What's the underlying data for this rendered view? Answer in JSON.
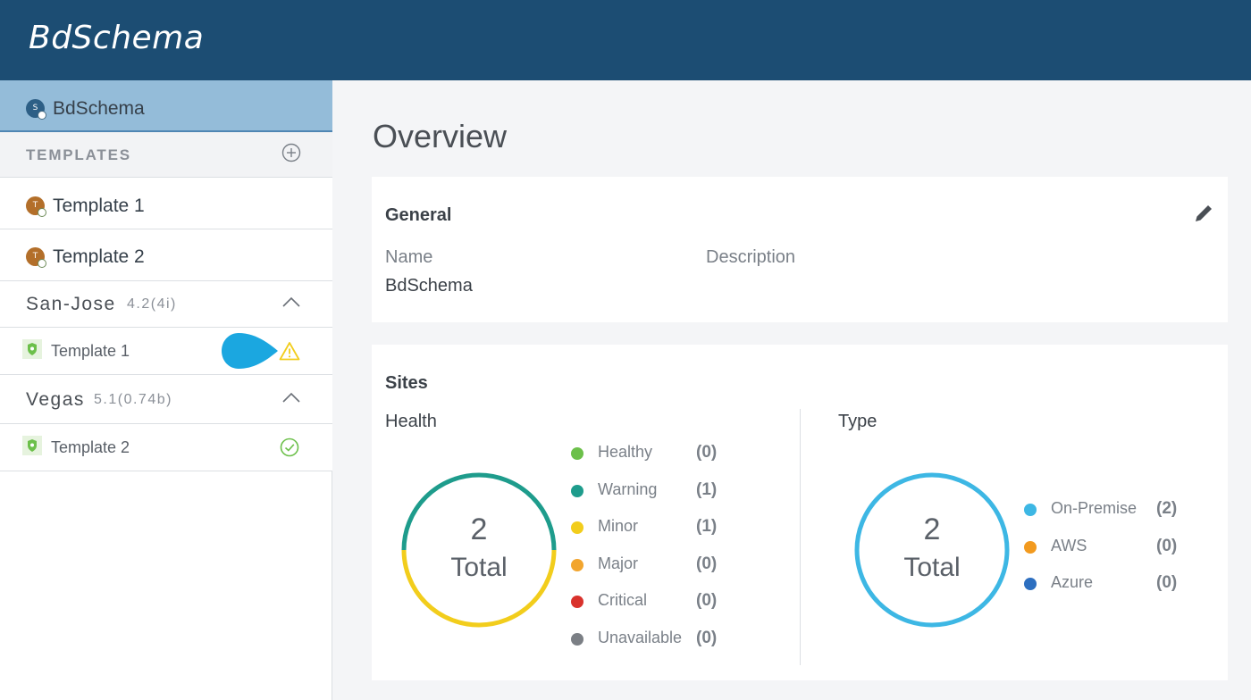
{
  "app": {
    "title": "BdSchema"
  },
  "sidebar": {
    "schema": {
      "label": "BdSchema",
      "avatar_letter": "S"
    },
    "templates_header": "TEMPLATES",
    "templates": [
      {
        "label": "Template 1",
        "avatar_letter": "T"
      },
      {
        "label": "Template 2",
        "avatar_letter": "T"
      }
    ],
    "sites": [
      {
        "name": "San-Jose",
        "version": "4.2(4i)",
        "templates": [
          {
            "label": "Template 1",
            "status": "warning"
          }
        ]
      },
      {
        "name": "Vegas",
        "version": "5.1(0.74b)",
        "templates": [
          {
            "label": "Template 2",
            "status": "ok"
          }
        ]
      }
    ]
  },
  "main": {
    "title": "Overview",
    "general": {
      "title": "General",
      "name_label": "Name",
      "name_value": "BdSchema",
      "description_label": "Description"
    },
    "sites": {
      "title": "Sites",
      "health": {
        "title": "Health",
        "total_number": "2",
        "total_label": "Total",
        "legend": [
          {
            "label": "Healthy",
            "count": "(0)",
            "color": "#6cc04a"
          },
          {
            "label": "Warning",
            "count": "(1)",
            "color": "#1e9c8c"
          },
          {
            "label": "Minor",
            "count": "(1)",
            "color": "#f2cd1c"
          },
          {
            "label": "Major",
            "count": "(0)",
            "color": "#f2a52e"
          },
          {
            "label": "Critical",
            "count": "(0)",
            "color": "#d9322c"
          },
          {
            "label": "Unavailable",
            "count": "(0)",
            "color": "#7b7f85"
          }
        ]
      },
      "type": {
        "title": "Type",
        "total_number": "2",
        "total_label": "Total",
        "legend": [
          {
            "label": "On-Premise",
            "count": "(2)",
            "color": "#3db7e4"
          },
          {
            "label": "AWS",
            "count": "(0)",
            "color": "#f29a1f"
          },
          {
            "label": "Azure",
            "count": "(0)",
            "color": "#2d6fc0"
          }
        ]
      }
    }
  },
  "colors": {
    "header_bg": "#1c4d73",
    "selected_row_bg": "#94bcd9",
    "warning_icon": "#f2cd1c",
    "ok_icon": "#6cc04a",
    "pointer": "#1ba7e0"
  }
}
